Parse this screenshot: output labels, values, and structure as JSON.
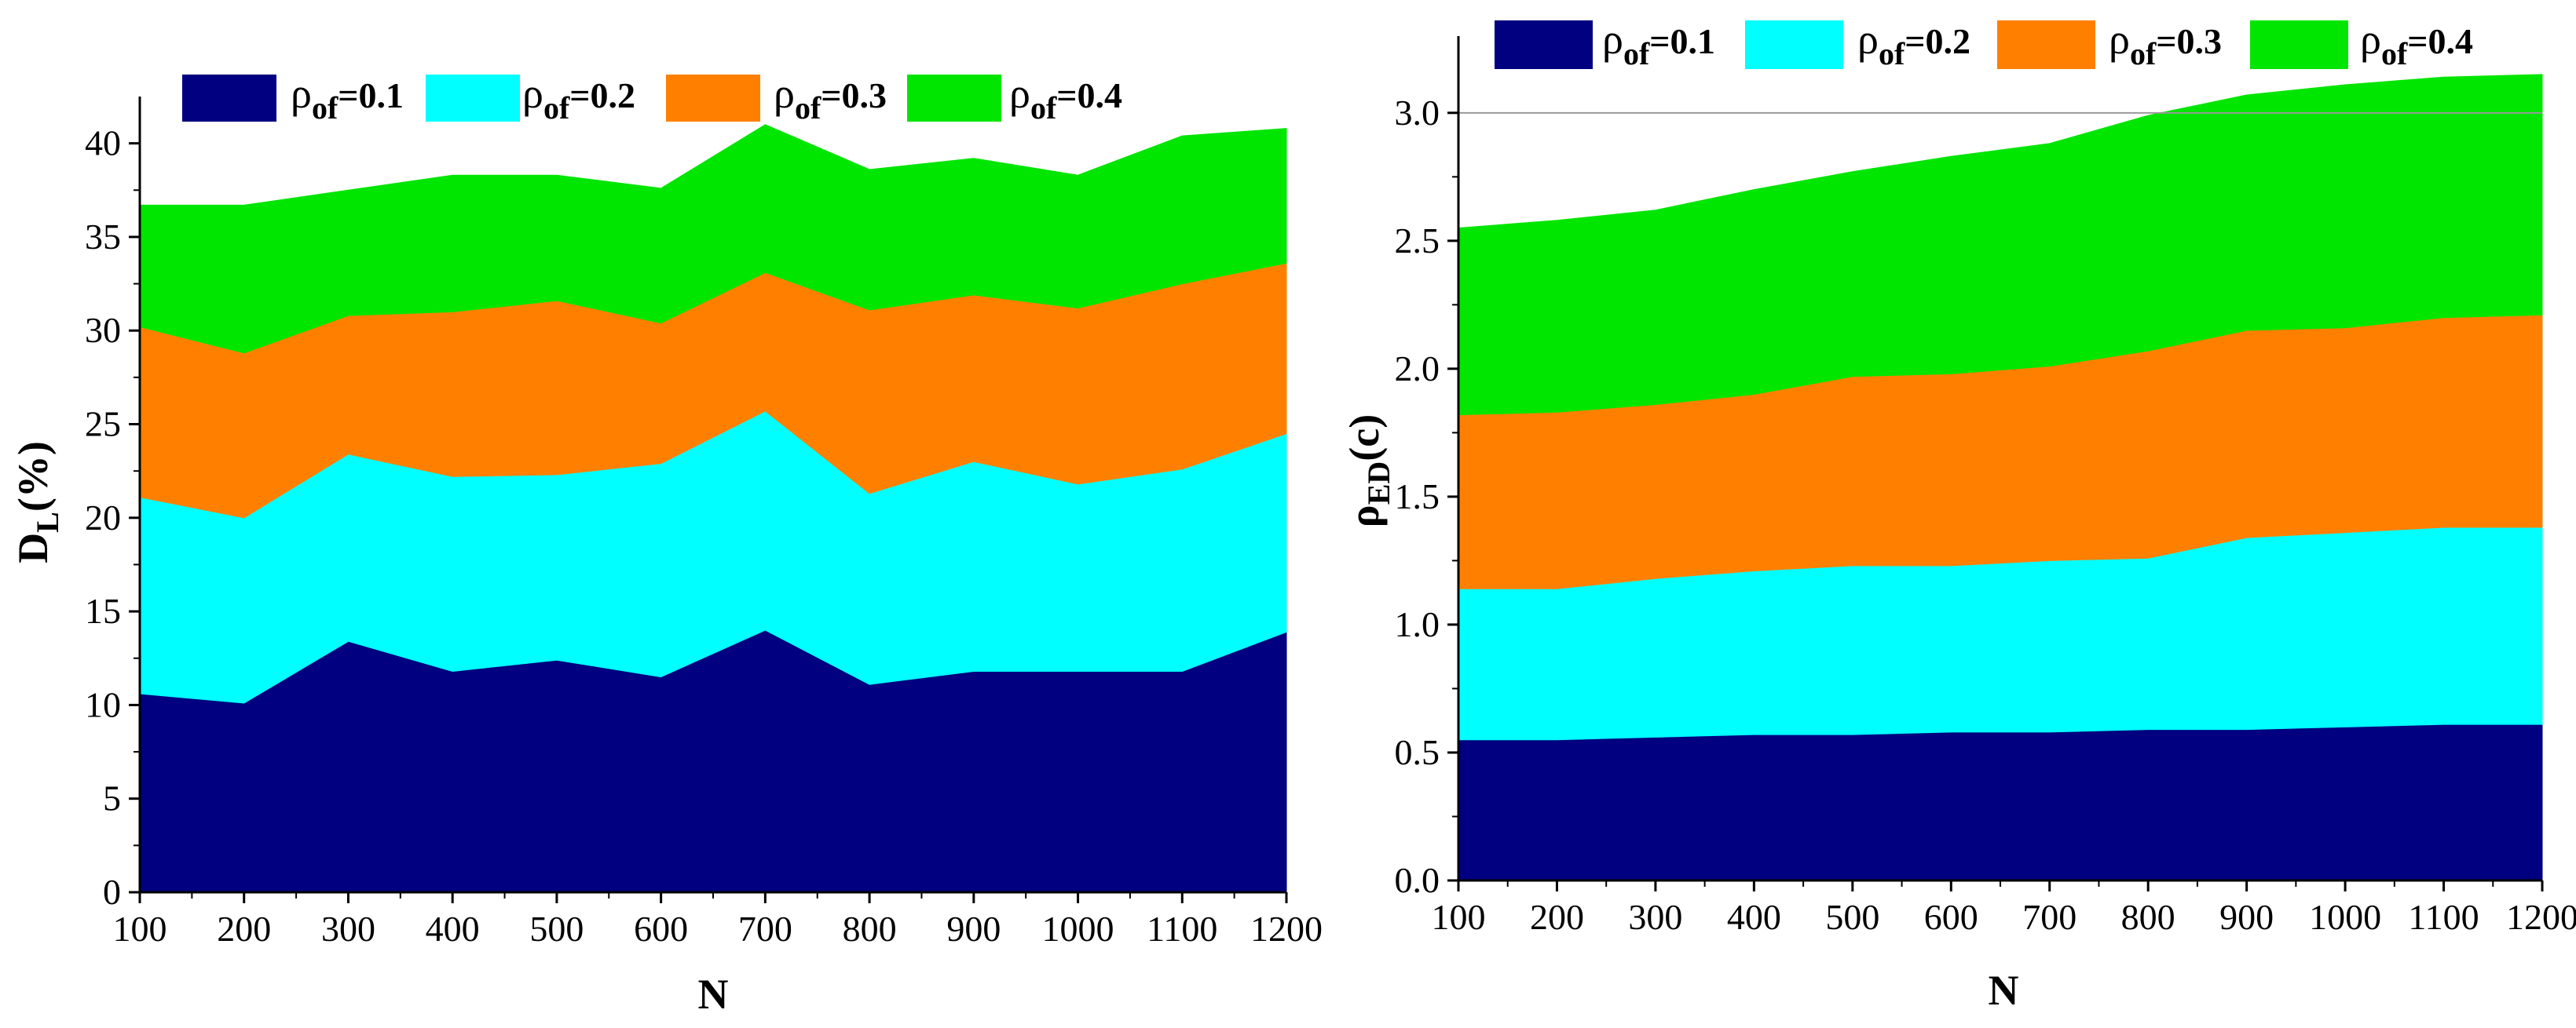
{
  "chart_data": [
    {
      "type": "area",
      "stacked": true,
      "x": [
        100,
        200,
        300,
        400,
        500,
        600,
        700,
        800,
        900,
        1000,
        1100,
        1200
      ],
      "xlabel": "N",
      "ylabel": "D",
      "ylabel_subscript": "L",
      "ylabel_suffix": "(%)",
      "xlim": [
        100,
        1200
      ],
      "ylim": [
        0,
        42.5
      ],
      "xticks": [
        "100",
        "200",
        "300",
        "400",
        "500",
        "600",
        "700",
        "800",
        "900",
        "1000",
        "1100",
        "1200"
      ],
      "yticks": [
        "0",
        "5",
        "10",
        "15",
        "20",
        "25",
        "30",
        "35",
        "40"
      ],
      "ytick_values": [
        0,
        5,
        10,
        15,
        20,
        25,
        30,
        35,
        40
      ],
      "legend_position": "top",
      "series": [
        {
          "name": "ρof=0.1",
          "symbol": "ρ",
          "subscript": "of",
          "value_text": "=0.1",
          "color": "#000080",
          "values": [
            10.6,
            10.1,
            13.4,
            11.8,
            12.4,
            11.5,
            14.0,
            11.1,
            11.8,
            11.8,
            11.8,
            13.9
          ]
        },
        {
          "name": "ρof=0.2",
          "symbol": "ρ",
          "subscript": "of",
          "value_text": "=0.2",
          "color": "#00FFFF",
          "values": [
            10.5,
            9.9,
            10.0,
            10.4,
            9.9,
            11.4,
            11.7,
            10.2,
            11.2,
            10.0,
            10.8,
            10.6
          ]
        },
        {
          "name": "ρof=0.3",
          "symbol": "ρ",
          "subscript": "of",
          "value_text": "=0.3",
          "color": "#FF8000",
          "values": [
            9.1,
            8.8,
            7.4,
            8.8,
            9.3,
            7.5,
            7.4,
            9.8,
            8.9,
            9.4,
            9.9,
            9.1
          ]
        },
        {
          "name": "ρof=0.4",
          "symbol": "ρ",
          "subscript": "of",
          "value_text": "=0.4",
          "color": "#00E600",
          "values": [
            6.5,
            7.9,
            6.7,
            7.3,
            6.7,
            7.2,
            7.9,
            7.5,
            7.3,
            7.1,
            7.9,
            7.2
          ]
        }
      ]
    },
    {
      "type": "area",
      "stacked": true,
      "x": [
        100,
        200,
        300,
        400,
        500,
        600,
        700,
        800,
        900,
        1000,
        1100,
        1200
      ],
      "xlabel": "N",
      "ylabel": "ρ",
      "ylabel_subscript": "ED",
      "ylabel_suffix": "(c)",
      "xlim": [
        100,
        1200
      ],
      "ylim": [
        0,
        3.3
      ],
      "reference_line": 3.0,
      "xticks": [
        "100",
        "200",
        "300",
        "400",
        "500",
        "600",
        "700",
        "800",
        "900",
        "1000",
        "1100",
        "1200"
      ],
      "yticks": [
        "0.0",
        "0.5",
        "1.0",
        "1.5",
        "2.0",
        "2.5",
        "3.0"
      ],
      "ytick_values": [
        0,
        0.5,
        1.0,
        1.5,
        2.0,
        2.5,
        3.0
      ],
      "legend_position": "top",
      "series": [
        {
          "name": "ρof=0.1",
          "symbol": "ρ",
          "subscript": "of",
          "value_text": "=0.1",
          "color": "#000080",
          "values": [
            0.55,
            0.55,
            0.56,
            0.57,
            0.57,
            0.58,
            0.58,
            0.59,
            0.59,
            0.6,
            0.61,
            0.61
          ]
        },
        {
          "name": "ρof=0.2",
          "symbol": "ρ",
          "subscript": "of",
          "value_text": "=0.2",
          "color": "#00FFFF",
          "values": [
            0.59,
            0.59,
            0.62,
            0.64,
            0.66,
            0.65,
            0.67,
            0.67,
            0.75,
            0.76,
            0.77,
            0.77
          ]
        },
        {
          "name": "ρof=0.3",
          "symbol": "ρ",
          "subscript": "of",
          "value_text": "=0.3",
          "color": "#FF8000",
          "values": [
            0.68,
            0.69,
            0.68,
            0.69,
            0.74,
            0.75,
            0.76,
            0.81,
            0.81,
            0.8,
            0.82,
            0.83
          ]
        },
        {
          "name": "ρof=0.4",
          "symbol": "ρ",
          "subscript": "of",
          "value_text": "=0.4",
          "color": "#00E600",
          "values": [
            0.73,
            0.75,
            0.76,
            0.8,
            0.8,
            0.85,
            0.87,
            0.92,
            0.92,
            0.95,
            0.94,
            0.94
          ]
        }
      ]
    }
  ]
}
